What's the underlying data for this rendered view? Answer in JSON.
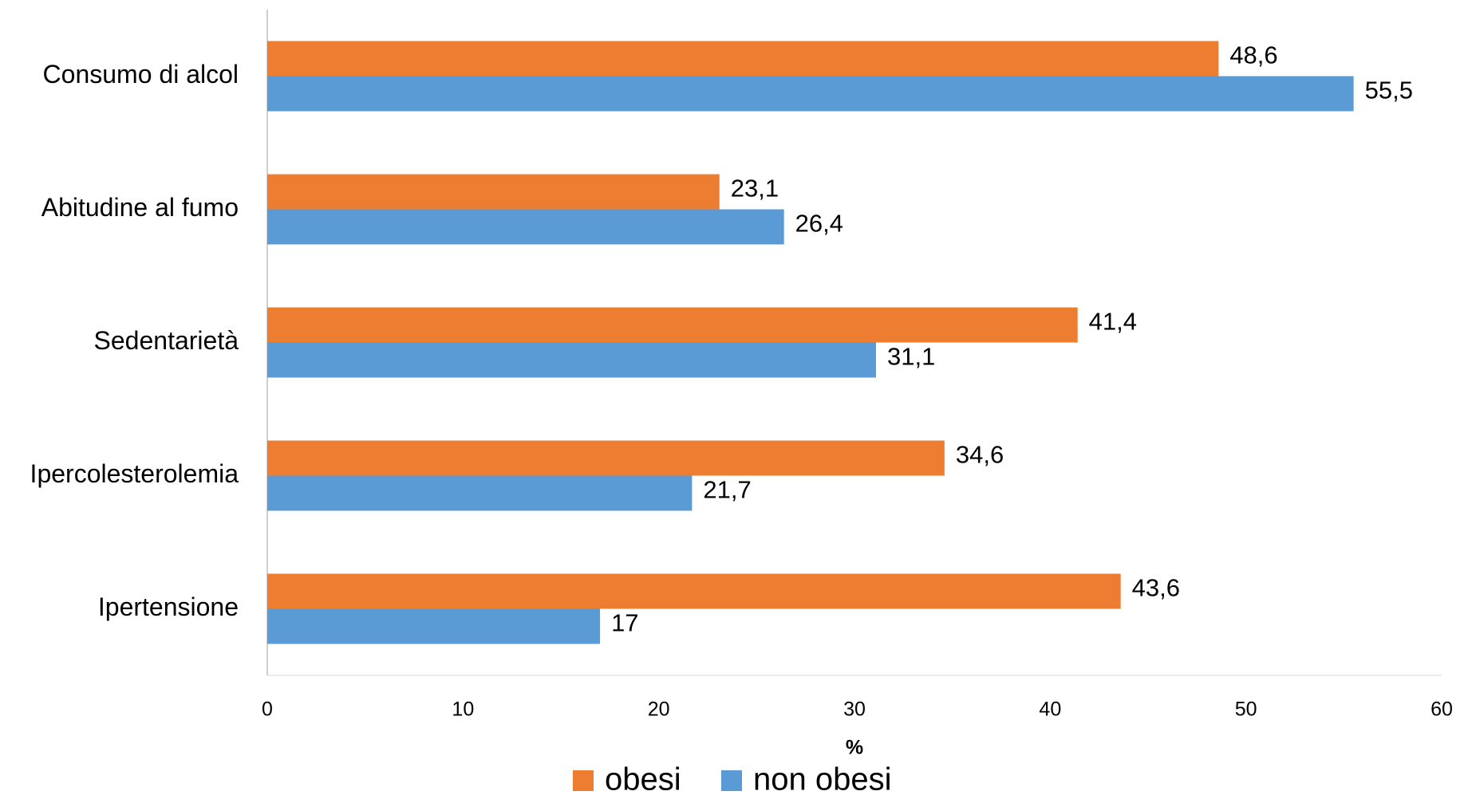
{
  "chart_data": {
    "type": "bar",
    "orientation": "horizontal",
    "categories": [
      "Consumo di alcol",
      "Abitudine al fumo",
      "Sedentarietà",
      "Ipercolesterolemia",
      "Ipertensione"
    ],
    "series": [
      {
        "name": "obesi",
        "color": "#ed7d31",
        "values": [
          48.6,
          23.1,
          41.4,
          34.6,
          43.6
        ],
        "value_labels": [
          "48,6",
          "23,1",
          "41,4",
          "34,6",
          "43,6"
        ]
      },
      {
        "name": "non obesi",
        "color": "#5b9bd5",
        "values": [
          55.5,
          26.4,
          31.1,
          21.7,
          17
        ],
        "value_labels": [
          "55,5",
          "26,4",
          "31,1",
          "21,7",
          "17"
        ]
      }
    ],
    "x_label": "%",
    "xlim": [
      0,
      60
    ],
    "xticks": [
      0,
      10,
      20,
      30,
      40,
      50,
      60
    ],
    "legend": "bottom"
  }
}
